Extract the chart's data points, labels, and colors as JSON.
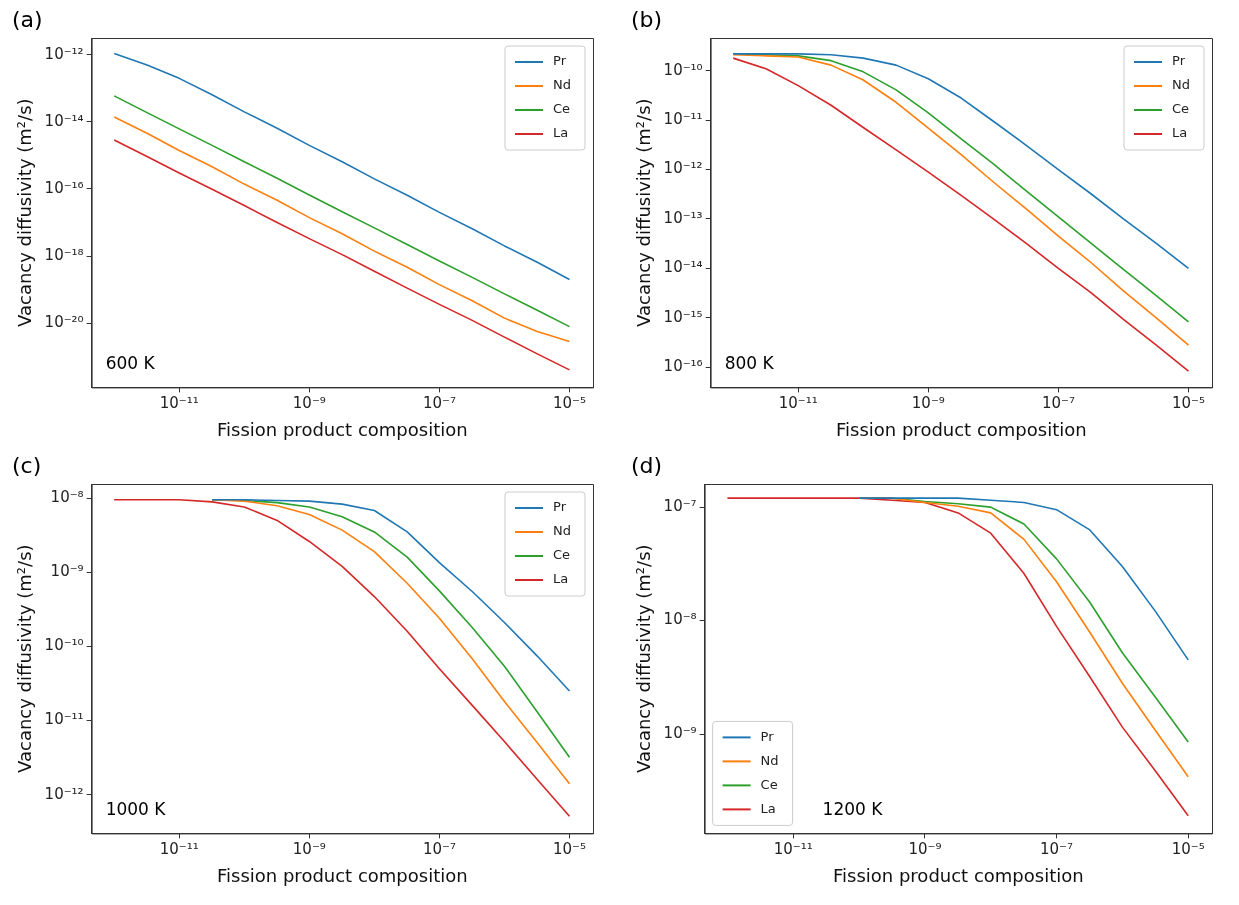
{
  "chart_data": [
    {
      "type": "line",
      "xlabel": "Fission product composition",
      "ylabel": "Vacancy diffusivity (m²/s)",
      "log": "xy",
      "legend": "top right",
      "annotations": [
        "(a)",
        "600 K"
      ],
      "x": [
        1e-12,
        3.2e-12,
        1e-11,
        3.2e-11,
        1e-10,
        3.2e-10,
        1e-09,
        3.2e-09,
        1e-08,
        3.2e-08,
        1e-07,
        3.2e-07,
        1e-06,
        3.2e-06,
        1e-05
      ],
      "xlim": [
        4.5e-13,
        2.3e-05
      ],
      "xticks": [
        {
          "value": 1e-11,
          "label": "10⁻¹¹"
        },
        {
          "value": 1e-09,
          "label": "10⁻⁹"
        },
        {
          "value": 1e-07,
          "label": "10⁻⁷"
        },
        {
          "value": 1e-05,
          "label": "10⁻⁵"
        }
      ],
      "ylim": [
        1.2e-22,
        3.2e-12
      ],
      "yticks": [
        {
          "value": 1e-20,
          "label": "10⁻²⁰"
        },
        {
          "value": 1e-18,
          "label": "10⁻¹⁸"
        },
        {
          "value": 1e-16,
          "label": "10⁻¹⁶"
        },
        {
          "value": 1e-14,
          "label": "10⁻¹⁴"
        },
        {
          "value": 1e-12,
          "label": "10⁻¹²"
        }
      ],
      "series": [
        {
          "name": "Pr",
          "color": "#1f77b4",
          "values": [
            1.1e-12,
            5e-13,
            2e-13,
            6.5e-14,
            2e-14,
            6.5e-15,
            2e-15,
            6.5e-16,
            2e-16,
            6.5e-17,
            2e-17,
            6.5e-18,
            2e-18,
            6.5e-19,
            2e-19
          ]
        },
        {
          "name": "Nd",
          "color": "#ff7f0e",
          "values": [
            1.4e-14,
            4.6e-15,
            1.4e-15,
            4.6e-16,
            1.4e-16,
            4.6e-17,
            1.4e-17,
            4.6e-18,
            1.4e-18,
            4.6e-19,
            1.4e-19,
            4.6e-20,
            1.4e-20,
            5.6e-21,
            2.8e-21
          ]
        },
        {
          "name": "Ce",
          "color": "#2ca02c",
          "values": [
            6e-14,
            1.9e-14,
            6.2e-15,
            2e-15,
            6.5e-16,
            2.1e-16,
            6.6e-17,
            2.1e-17,
            6.9e-18,
            2.2e-18,
            7.1e-19,
            2.3e-19,
            7.4e-20,
            2.4e-20,
            7.8e-21
          ]
        },
        {
          "name": "La",
          "color": "#d62728",
          "values": [
            2.9e-15,
            9.3e-16,
            3e-16,
            9.8e-17,
            3.2e-17,
            1e-17,
            3.3e-18,
            1.1e-18,
            3.5e-19,
            1.1e-19,
            3.6e-20,
            1.2e-20,
            3.8e-21,
            1.2e-21,
            4e-22
          ]
        }
      ]
    },
    {
      "type": "line",
      "xlabel": "Fission product composition",
      "ylabel": "Vacancy diffusivity (m²/s)",
      "log": "xy",
      "legend": "top right",
      "annotations": [
        "(b)",
        "800 K"
      ],
      "x": [
        1e-12,
        3.2e-12,
        1e-11,
        3.2e-11,
        1e-10,
        3.2e-10,
        1e-09,
        3.2e-09,
        1e-08,
        3.2e-08,
        1e-07,
        3.2e-07,
        1e-06,
        3.2e-06,
        1e-05
      ],
      "xlim": [
        4.5e-13,
        2.3e-05
      ],
      "xticks": [
        {
          "value": 1e-11,
          "label": "10⁻¹¹"
        },
        {
          "value": 1e-09,
          "label": "10⁻⁹"
        },
        {
          "value": 1e-07,
          "label": "10⁻⁷"
        },
        {
          "value": 1e-05,
          "label": "10⁻⁵"
        }
      ],
      "ylim": [
        3.9e-17,
        4.6e-10
      ],
      "yticks": [
        {
          "value": 1e-16,
          "label": "10⁻¹⁶"
        },
        {
          "value": 1e-15,
          "label": "10⁻¹⁵"
        },
        {
          "value": 1e-14,
          "label": "10⁻¹⁴"
        },
        {
          "value": 1e-13,
          "label": "10⁻¹³"
        },
        {
          "value": 1e-12,
          "label": "10⁻¹²"
        },
        {
          "value": 1e-11,
          "label": "10⁻¹¹"
        },
        {
          "value": 1e-10,
          "label": "10⁻¹⁰"
        }
      ],
      "series": [
        {
          "name": "Pr",
          "color": "#1f77b4",
          "values": [
            2.2e-10,
            2.2e-10,
            2.2e-10,
            2.1e-10,
            1.8e-10,
            1.3e-10,
            6.9e-11,
            2.8e-11,
            9.5e-12,
            3.1e-12,
            1e-12,
            3.2e-13,
            1e-13,
            3.2e-14,
            1e-14
          ]
        },
        {
          "name": "Nd",
          "color": "#ff7f0e",
          "values": [
            2.1e-10,
            2e-10,
            1.9e-10,
            1.3e-10,
            6.5e-11,
            2.3e-11,
            6.9e-12,
            2e-12,
            5.6e-13,
            1.6e-13,
            4.5e-14,
            1.3e-14,
            3.5e-15,
            1e-15,
            2.8e-16
          ]
        },
        {
          "name": "Ce",
          "color": "#2ca02c",
          "values": [
            2.2e-10,
            2.1e-10,
            2e-10,
            1.6e-10,
            9.5e-11,
            4.1e-11,
            1.4e-11,
            4.2e-12,
            1.3e-12,
            3.7e-13,
            1.1e-13,
            3.2e-14,
            9.5e-15,
            2.8e-15,
            8.3e-16
          ]
        },
        {
          "name": "La",
          "color": "#d62728",
          "values": [
            1.8e-10,
            1.1e-10,
            5e-11,
            2e-11,
            7.1e-12,
            2.5e-12,
            8.9e-13,
            3e-13,
            1e-13,
            3.2e-14,
            1e-14,
            3.2e-15,
            9.3e-16,
            2.8e-16,
            8.3e-17
          ]
        }
      ]
    },
    {
      "type": "line",
      "xlabel": "Fission product composition",
      "ylabel": "Vacancy diffusivity (m²/s)",
      "log": "xy",
      "legend": "top right",
      "annotations": [
        "(c)",
        "1000 K"
      ],
      "x": [
        1e-12,
        3.2e-12,
        1e-11,
        3.2e-11,
        1e-10,
        3.2e-10,
        1e-09,
        3.2e-09,
        1e-08,
        3.2e-08,
        1e-07,
        3.2e-07,
        1e-06,
        3.2e-06,
        1e-05
      ],
      "xlim": [
        4.5e-13,
        2.3e-05
      ],
      "xticks": [
        {
          "value": 1e-11,
          "label": "10⁻¹¹"
        },
        {
          "value": 1e-09,
          "label": "10⁻⁹"
        },
        {
          "value": 1e-07,
          "label": "10⁻⁷"
        },
        {
          "value": 1e-05,
          "label": "10⁻⁵"
        }
      ],
      "ylim": [
        3.1e-13,
        1.55e-08
      ],
      "yticks": [
        {
          "value": 1e-12,
          "label": "10⁻¹²"
        },
        {
          "value": 1e-11,
          "label": "10⁻¹¹"
        },
        {
          "value": 1e-10,
          "label": "10⁻¹⁰"
        },
        {
          "value": 1e-09,
          "label": "10⁻⁹"
        },
        {
          "value": 1e-08,
          "label": "10⁻⁸"
        }
      ],
      "series": [
        {
          "name": "Pr",
          "color": "#1f77b4",
          "values": [
            null,
            null,
            null,
            9.5e-09,
            9.5e-09,
            9.3e-09,
            9.1e-09,
            8.3e-09,
            6.8e-09,
            3.5e-09,
            1.35e-09,
            5.5e-10,
            2.1e-10,
            7.4e-11,
            2.5e-11
          ]
        },
        {
          "name": "Nd",
          "color": "#ff7f0e",
          "values": [
            null,
            null,
            null,
            9.5e-09,
            9.1e-09,
            7.9e-09,
            6e-09,
            3.7e-09,
            1.9e-09,
            7.1e-10,
            2.4e-10,
            6.8e-11,
            1.8e-11,
            5e-12,
            1.4e-12
          ]
        },
        {
          "name": "Ce",
          "color": "#2ca02c",
          "values": [
            null,
            null,
            null,
            9.5e-09,
            9.3e-09,
            8.7e-09,
            7.6e-09,
            5.6e-09,
            3.5e-09,
            1.6e-09,
            5.6e-10,
            1.8e-10,
            5.4e-11,
            1.3e-11,
            3.2e-12
          ]
        },
        {
          "name": "La",
          "color": "#d62728",
          "values": [
            9.5e-09,
            9.5e-09,
            9.5e-09,
            8.9e-09,
            7.6e-09,
            5e-09,
            2.6e-09,
            1.2e-09,
            4.7e-10,
            1.6e-10,
            5e-11,
            1.6e-11,
            5.2e-12,
            1.6e-12,
            5.1e-13
          ]
        }
      ]
    },
    {
      "type": "line",
      "xlabel": "Fission product composition",
      "ylabel": "Vacancy diffusivity (m²/s)",
      "log": "xy",
      "legend": "bottom left",
      "annotations": [
        "(d)",
        "1200 K"
      ],
      "x": [
        1e-12,
        3.2e-12,
        1e-11,
        3.2e-11,
        1e-10,
        3.2e-10,
        1e-09,
        3.2e-09,
        1e-08,
        3.2e-08,
        1e-07,
        3.2e-07,
        1e-06,
        3.2e-06,
        1e-05
      ],
      "xlim": [
        4.5e-13,
        2.3e-05
      ],
      "xticks": [
        {
          "value": 1e-11,
          "label": "10⁻¹¹"
        },
        {
          "value": 1e-09,
          "label": "10⁻⁹"
        },
        {
          "value": 1e-07,
          "label": "10⁻⁷"
        },
        {
          "value": 1e-05,
          "label": "10⁻⁵"
        }
      ],
      "ylim": [
        1.33e-10,
        1.6e-07
      ],
      "yticks": [
        {
          "value": 1e-09,
          "label": "10⁻⁹"
        },
        {
          "value": 1e-08,
          "label": "10⁻⁸"
        },
        {
          "value": 1e-07,
          "label": "10⁻⁷"
        }
      ],
      "series": [
        {
          "name": "Pr",
          "color": "#1f77b4",
          "values": [
            null,
            null,
            null,
            null,
            1.2e-07,
            1.2e-07,
            1.2e-07,
            1.2e-07,
            1.15e-07,
            1.1e-07,
            9.5e-08,
            6.3e-08,
            3e-08,
            1.2e-08,
            4.5e-09
          ]
        },
        {
          "name": "Nd",
          "color": "#ff7f0e",
          "values": [
            null,
            null,
            null,
            null,
            1.2e-07,
            1.2e-07,
            1.1e-07,
            1.02e-07,
            8.9e-08,
            5.2e-08,
            2.2e-08,
            7.9e-09,
            2.8e-09,
            1.07e-09,
            4.2e-10
          ]
        },
        {
          "name": "Ce",
          "color": "#2ca02c",
          "values": [
            null,
            null,
            null,
            null,
            1.2e-07,
            1.2e-07,
            1.12e-07,
            1.07e-07,
            1e-07,
            7.1e-08,
            3.5e-08,
            1.45e-08,
            5.2e-09,
            2.1e-09,
            8.5e-10
          ]
        },
        {
          "name": "La",
          "color": "#d62728",
          "values": [
            1.2e-07,
            1.2e-07,
            1.2e-07,
            1.2e-07,
            1.2e-07,
            1.15e-07,
            1.1e-07,
            8.9e-08,
            5.9e-08,
            2.6e-08,
            8.9e-09,
            3.2e-09,
            1.15e-09,
            4.7e-10,
            1.9e-10
          ]
        }
      ]
    }
  ]
}
